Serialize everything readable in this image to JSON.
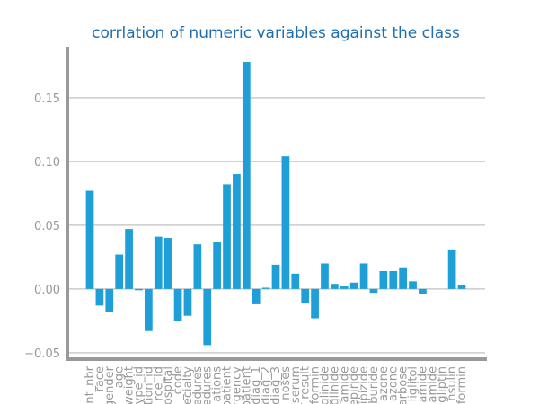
{
  "chart_data": {
    "type": "bar",
    "title": "corrlation of numeric variables against the class",
    "categories": [
      "ent_nbr",
      "race",
      "gender",
      "age",
      "weight",
      "ype_id",
      "tion_id",
      "rce_id",
      "ospital",
      "_code",
      "ecialty",
      "cedures",
      "edures",
      "ations",
      "patient",
      "rgency",
      "patient",
      "diag_1",
      "diag_2",
      "diag_3",
      "noses",
      "_serum",
      "result",
      "formin",
      "glinide",
      "glinide",
      "amide",
      "epiride",
      "ipizide",
      "buride",
      "azone",
      "azone",
      "arbose",
      "liglitol",
      "amide",
      "amide",
      "gliptin",
      "nsulin",
      "formin"
    ],
    "values": [
      0.077,
      -0.013,
      -0.018,
      0.027,
      0.047,
      -0.001,
      -0.033,
      0.041,
      0.04,
      -0.025,
      -0.021,
      0.035,
      -0.044,
      0.037,
      0.082,
      0.09,
      0.178,
      -0.012,
      0.001,
      0.019,
      0.104,
      0.012,
      -0.011,
      -0.023,
      0.02,
      0.004,
      0.002,
      0.005,
      0.02,
      -0.003,
      0.014,
      0.014,
      0.017,
      0.006,
      -0.004,
      0.0,
      0.0,
      0.031,
      0.003
    ],
    "color": "#1f9fd8",
    "ylim": [
      -0.055,
      0.19
    ],
    "yticks": [
      {
        "value": -0.05,
        "label": "−0.05"
      },
      {
        "value": 0,
        "label": "0.00"
      },
      {
        "value": 0.05,
        "label": "0.05"
      },
      {
        "value": 0.1,
        "label": "0.10"
      },
      {
        "value": 0.15,
        "label": "0.15"
      }
    ],
    "grid": true
  }
}
